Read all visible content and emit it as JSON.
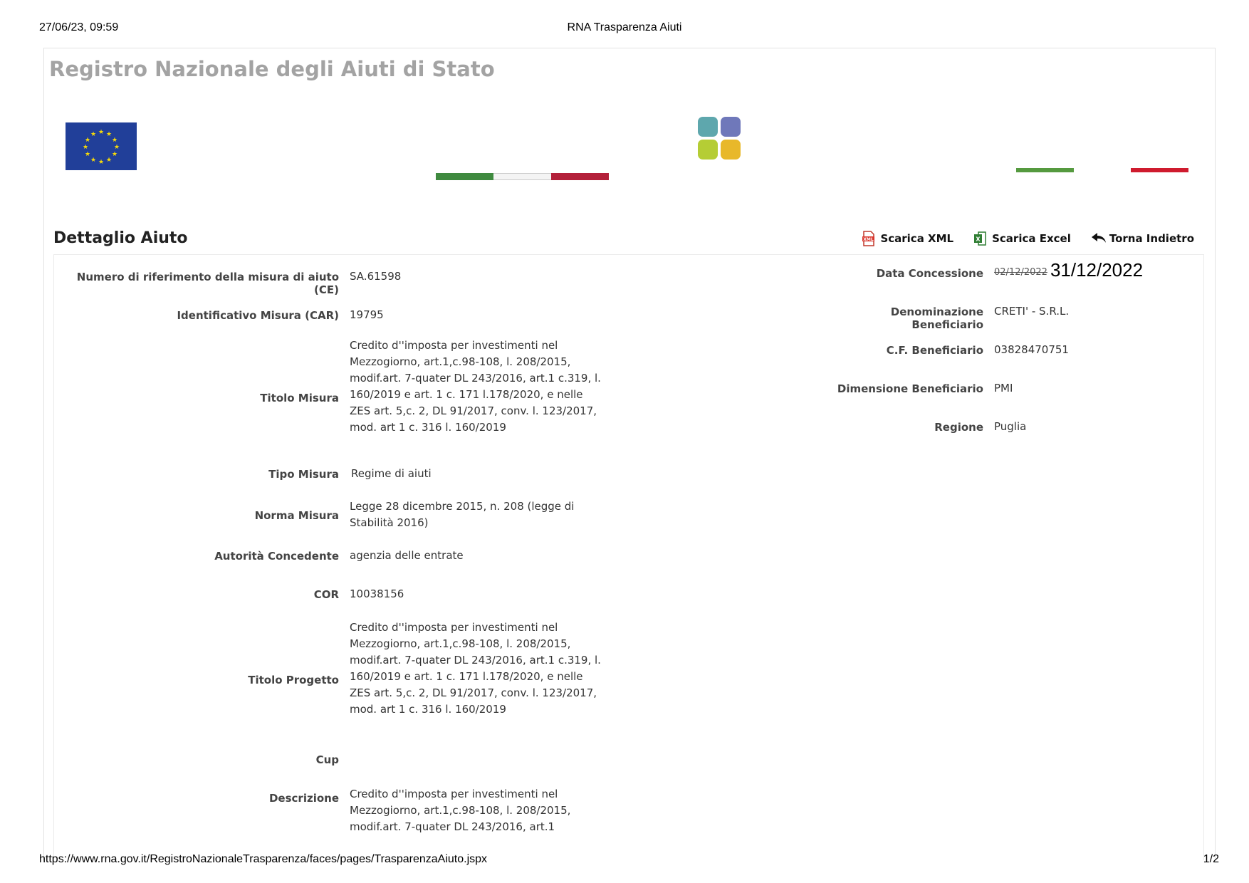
{
  "print": {
    "date_time": "27/06/23, 09:59",
    "title": "RNA Trasparenza Aiuti",
    "url": "https://www.rna.gov.it/RegistroNazionaleTrasparenza/faces/pages/TrasparenzaAiuto.jspx",
    "page": "1/2"
  },
  "site": {
    "title": "Registro Nazionale degli Aiuti di Stato"
  },
  "section": {
    "title": "Dettaglio Aiuto"
  },
  "actions": {
    "xml": {
      "label": "Scarica XML",
      "icon": "xml-file-icon"
    },
    "excel": {
      "label": "Scarica Excel",
      "icon": "excel-file-icon"
    },
    "back": {
      "label": "Torna Indietro",
      "icon": "reply-arrow-icon"
    }
  },
  "colors": {
    "eu_blue": "#213f99",
    "green": "#3f8a3f",
    "red": "#b3203a"
  },
  "left": {
    "numero_label": "Numero di riferimento della misura di aiuto (CE)",
    "numero_value": "SA.61598",
    "car_label": "Identificativo Misura (CAR)",
    "car_value": "19795",
    "titolo_misura_label": "Titolo Misura",
    "titolo_misura_value": "Credito d''imposta per investimenti nel Mezzogiorno, art.1,c.98-108, l. 208/2015, modif.art. 7-quater DL 243/2016, art.1 c.319, l. 160/2019 e art. 1 c. 171 l.178/2020, e nelle ZES art. 5,c. 2, DL 91/2017, conv. l. 123/2017, mod. art 1 c. 316 l. 160/2019",
    "tipo_label": "Tipo Misura",
    "tipo_value": "Regime di aiuti",
    "norma_label": "Norma Misura",
    "norma_value": "Legge 28 dicembre 2015, n. 208 (legge di Stabilità 2016)",
    "autorita_label": "Autorità Concedente",
    "autorita_value": "agenzia delle entrate",
    "cor_label": "COR",
    "cor_value": "10038156",
    "titolo_progetto_label": "Titolo Progetto",
    "titolo_progetto_value": "Credito d''imposta per investimenti nel Mezzogiorno, art.1,c.98-108, l. 208/2015, modif.art. 7-quater DL 243/2016, art.1 c.319, l. 160/2019 e art. 1 c. 171 l.178/2020, e nelle ZES art. 5,c. 2, DL 91/2017, conv. l. 123/2017, mod. art 1 c. 316 l. 160/2019",
    "cup_label": "Cup",
    "cup_value": "",
    "descrizione_label": "Descrizione",
    "descrizione_value": "Credito d''imposta per investimenti nel Mezzogiorno, art.1,c.98-108, l. 208/2015, modif.art. 7-quater DL 243/2016, art.1"
  },
  "right": {
    "data_label": "Data Concessione",
    "data_original": "02/12/2022",
    "data_new": "31/12/2022",
    "denominazione_label": "Denominazione Beneficiario",
    "denominazione_value": "CRETI' - S.R.L.",
    "cf_label": "C.F. Beneficiario",
    "cf_value": "03828470751",
    "dimensione_label": "Dimensione Beneficiario",
    "dimensione_value": "PMI",
    "regione_label": "Regione",
    "regione_value": "Puglia"
  }
}
